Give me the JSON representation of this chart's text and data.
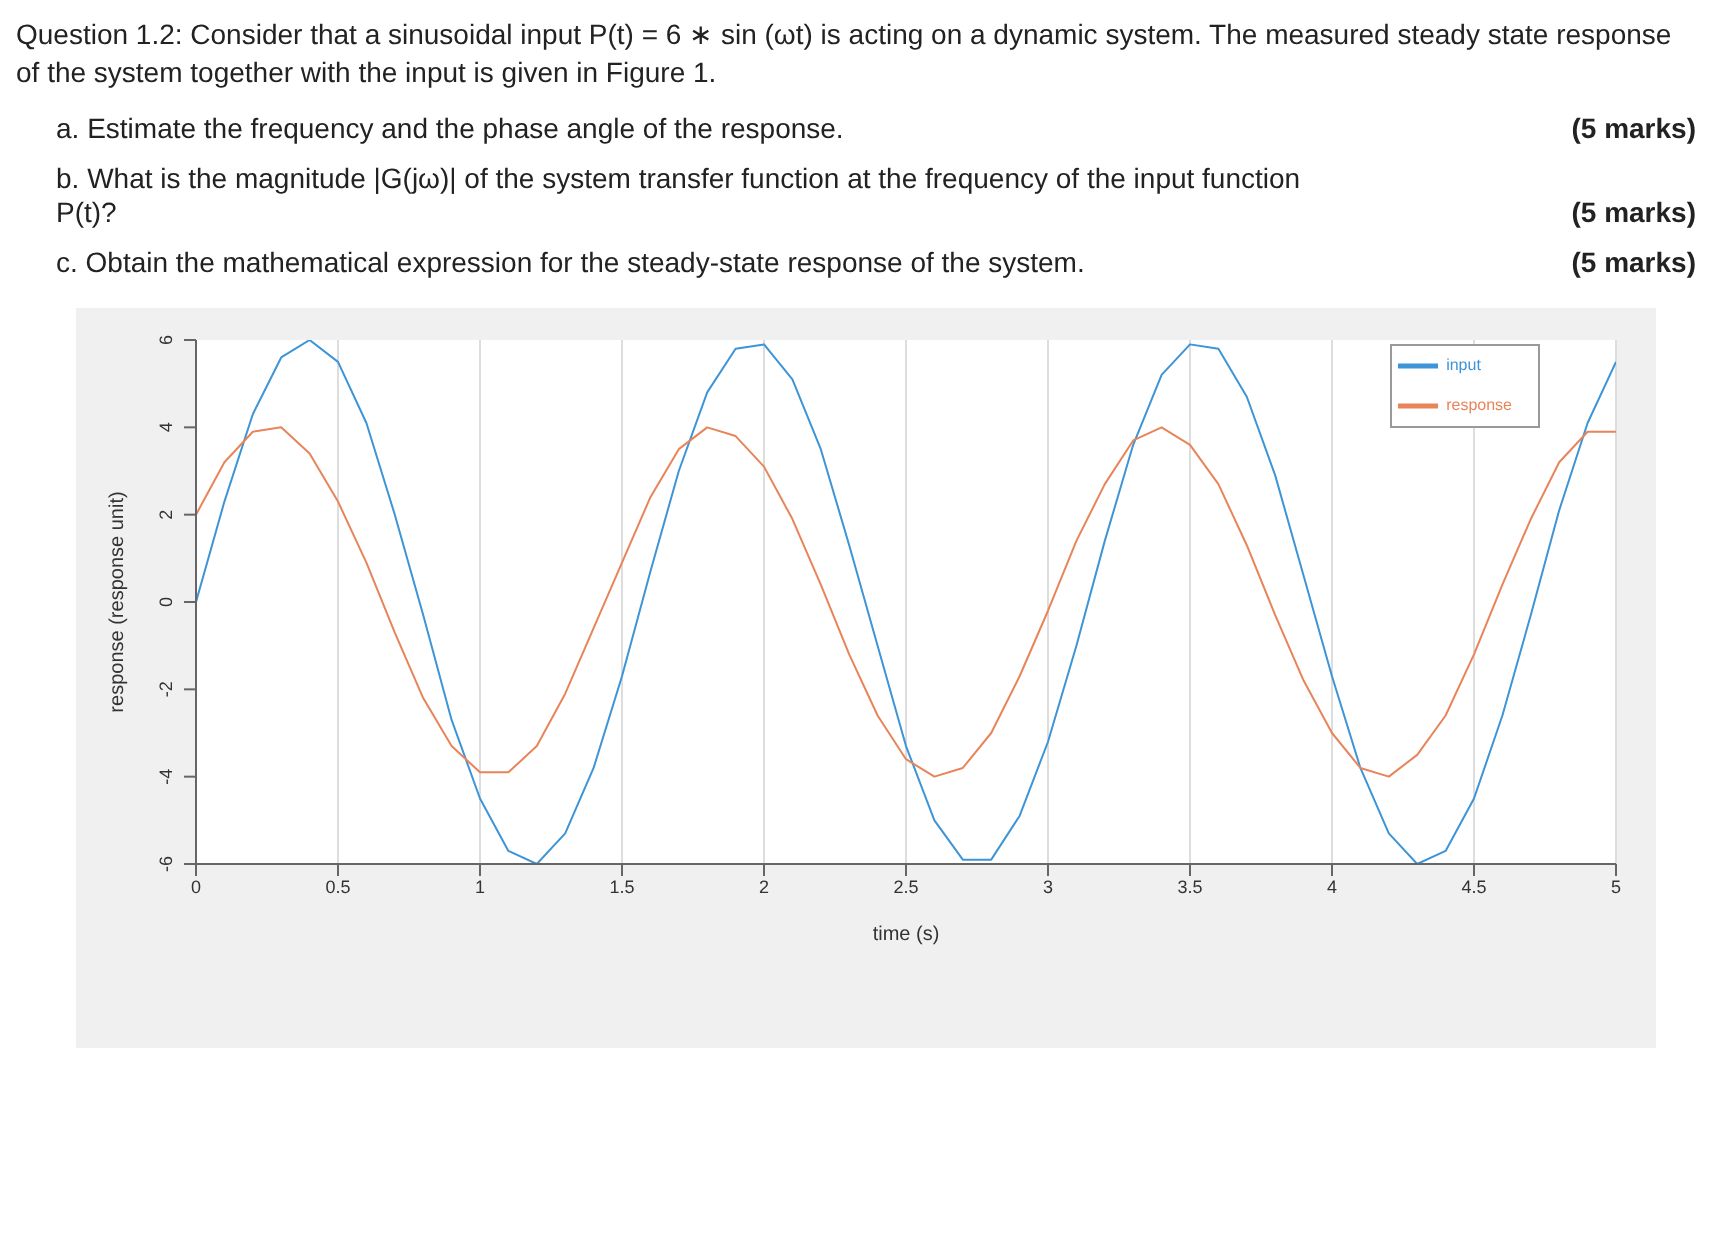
{
  "chart_data": {
    "type": "line",
    "title": "Question 1.2: Consider that a sinusoidal input P(t) = 6 ∗ sin (ωt) is acting on a dynamic system. The measured steady state response of the system together with the input is given in Figure 1.",
    "annotations": [
      "a.  Estimate the frequency and the phase angle of the response.",
      "(5 marks)",
      "b.  What is the magnitude |G(jω)| of the system transfer function at the frequency of the input function P(t)?",
      "(5 marks)",
      "c.  Obtain the mathematical expression for the steady-state response of the system.",
      "(5 marks)"
    ],
    "xlabel": "time (s)",
    "ylabel": "response (response unit)",
    "x": [
      0,
      0.1,
      0.2,
      0.3,
      0.4,
      0.5,
      0.6,
      0.7,
      0.8,
      0.9,
      1.0,
      1.1,
      1.2,
      1.3,
      1.4,
      1.5,
      1.6,
      1.7,
      1.8,
      1.9,
      2.0,
      2.1,
      2.2,
      2.3,
      2.4,
      2.5,
      2.6,
      2.7,
      2.8,
      2.9,
      3.0,
      3.1,
      3.2,
      3.3,
      3.4,
      3.5,
      3.6,
      3.7,
      3.8,
      3.9,
      4.0,
      4.1,
      4.2,
      4.3,
      4.4,
      4.5,
      4.6,
      4.7,
      4.8,
      4.9,
      5.0
    ],
    "series": [
      {
        "name": "input",
        "color": "#3d94d6",
        "values": [
          0,
          2.3,
          4.3,
          5.6,
          6.0,
          5.5,
          4.1,
          2.0,
          -0.3,
          -2.7,
          -4.5,
          -5.7,
          -6.0,
          -5.3,
          -3.8,
          -1.7,
          0.7,
          3.0,
          4.8,
          5.8,
          5.9,
          5.1,
          3.5,
          1.3,
          -1.0,
          -3.3,
          -5.0,
          -5.9,
          -5.9,
          -4.9,
          -3.2,
          -1.0,
          1.4,
          3.6,
          5.2,
          5.9,
          5.8,
          4.7,
          2.9,
          0.6,
          -1.7,
          -3.8,
          -5.3,
          -6.0,
          -5.7,
          -4.5,
          -2.6,
          -0.3,
          2.1,
          4.1,
          5.5
        ]
      },
      {
        "name": "response",
        "color": "#e8845a",
        "values": [
          2.0,
          3.2,
          3.9,
          4.0,
          3.4,
          2.3,
          0.9,
          -0.7,
          -2.2,
          -3.3,
          -3.9,
          -3.9,
          -3.3,
          -2.1,
          -0.6,
          0.9,
          2.4,
          3.5,
          4.0,
          3.8,
          3.1,
          1.9,
          0.4,
          -1.2,
          -2.6,
          -3.6,
          -4.0,
          -3.8,
          -3.0,
          -1.7,
          -0.2,
          1.4,
          2.7,
          3.7,
          4.0,
          3.6,
          2.7,
          1.3,
          -0.3,
          -1.8,
          -3.0,
          -3.8,
          -4.0,
          -3.5,
          -2.6,
          -1.2,
          0.4,
          1.9,
          3.2,
          3.9,
          3.9
        ]
      }
    ],
    "xlim": [
      0,
      5
    ],
    "xticks": [
      0,
      0.5,
      1,
      1.5,
      2,
      2.5,
      3,
      3.5,
      4,
      4.5,
      5
    ],
    "ylim": [
      -6,
      6
    ],
    "yticks": [
      -6,
      -4,
      -2,
      0,
      2,
      4,
      6
    ],
    "grid": "x",
    "legend": "top right",
    "marker": "none",
    "line_style": "solid"
  }
}
